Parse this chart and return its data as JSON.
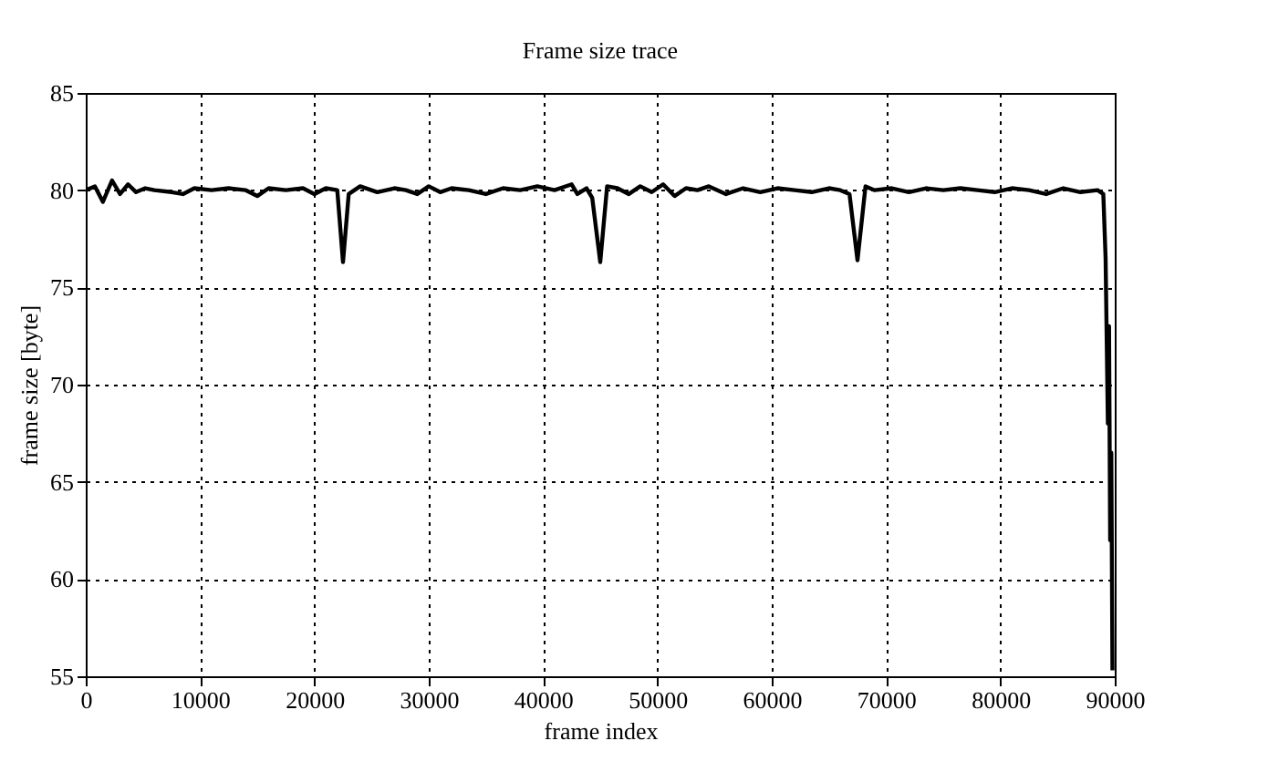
{
  "chart_data": {
    "type": "line",
    "title": "Frame size trace",
    "xlabel": "frame index",
    "ylabel": "frame size [byte]",
    "xlim": [
      0,
      90000
    ],
    "xticks": [
      0,
      10000,
      20000,
      30000,
      40000,
      50000,
      60000,
      70000,
      80000,
      90000
    ],
    "ylim": [
      55,
      85
    ],
    "yticks": [
      55,
      60,
      65,
      70,
      75,
      80,
      85
    ],
    "grid": true,
    "marker": "none",
    "line_style": "solid",
    "series": [
      {
        "color": "#000000",
        "x": [
          0,
          800,
          1500,
          2300,
          3000,
          3700,
          4400,
          5200,
          6000,
          7500,
          8500,
          9500,
          11000,
          12500,
          14000,
          15000,
          16000,
          17500,
          19000,
          20000,
          21000,
          22000,
          22500,
          23000,
          24000,
          25500,
          27000,
          28000,
          29000,
          30000,
          31000,
          32000,
          33500,
          35000,
          36500,
          38000,
          39500,
          41000,
          42500,
          43000,
          43800,
          44300,
          45000,
          45600,
          46500,
          47500,
          48500,
          49500,
          50500,
          51500,
          52500,
          53500,
          54500,
          56000,
          57500,
          59000,
          60500,
          62000,
          63500,
          65000,
          66000,
          66800,
          67500,
          68200,
          69000,
          70500,
          72000,
          73500,
          75000,
          76500,
          78000,
          79500,
          81000,
          82500,
          84000,
          85500,
          87000,
          88500,
          89000,
          89200,
          89400,
          89500,
          89600,
          89700,
          89800
        ],
        "values": [
          80.0,
          80.2,
          79.4,
          80.5,
          79.8,
          80.3,
          79.9,
          80.1,
          80.0,
          79.9,
          79.8,
          80.1,
          80.0,
          80.1,
          80.0,
          79.7,
          80.1,
          80.0,
          80.1,
          79.8,
          80.1,
          80.0,
          76.3,
          79.8,
          80.2,
          79.9,
          80.1,
          80.0,
          79.8,
          80.2,
          79.9,
          80.1,
          80.0,
          79.8,
          80.1,
          80.0,
          80.2,
          80.0,
          80.3,
          79.8,
          80.1,
          79.6,
          76.3,
          80.2,
          80.1,
          79.8,
          80.2,
          79.9,
          80.3,
          79.7,
          80.1,
          80.0,
          80.2,
          79.8,
          80.1,
          79.9,
          80.1,
          80.0,
          79.9,
          80.1,
          80.0,
          79.8,
          76.4,
          80.2,
          80.0,
          80.1,
          79.9,
          80.1,
          80.0,
          80.1,
          80.0,
          79.9,
          80.1,
          80.0,
          79.8,
          80.1,
          79.9,
          80.0,
          79.8,
          76.5,
          68.0,
          73.0,
          62.0,
          66.5,
          55.3
        ]
      }
    ]
  }
}
